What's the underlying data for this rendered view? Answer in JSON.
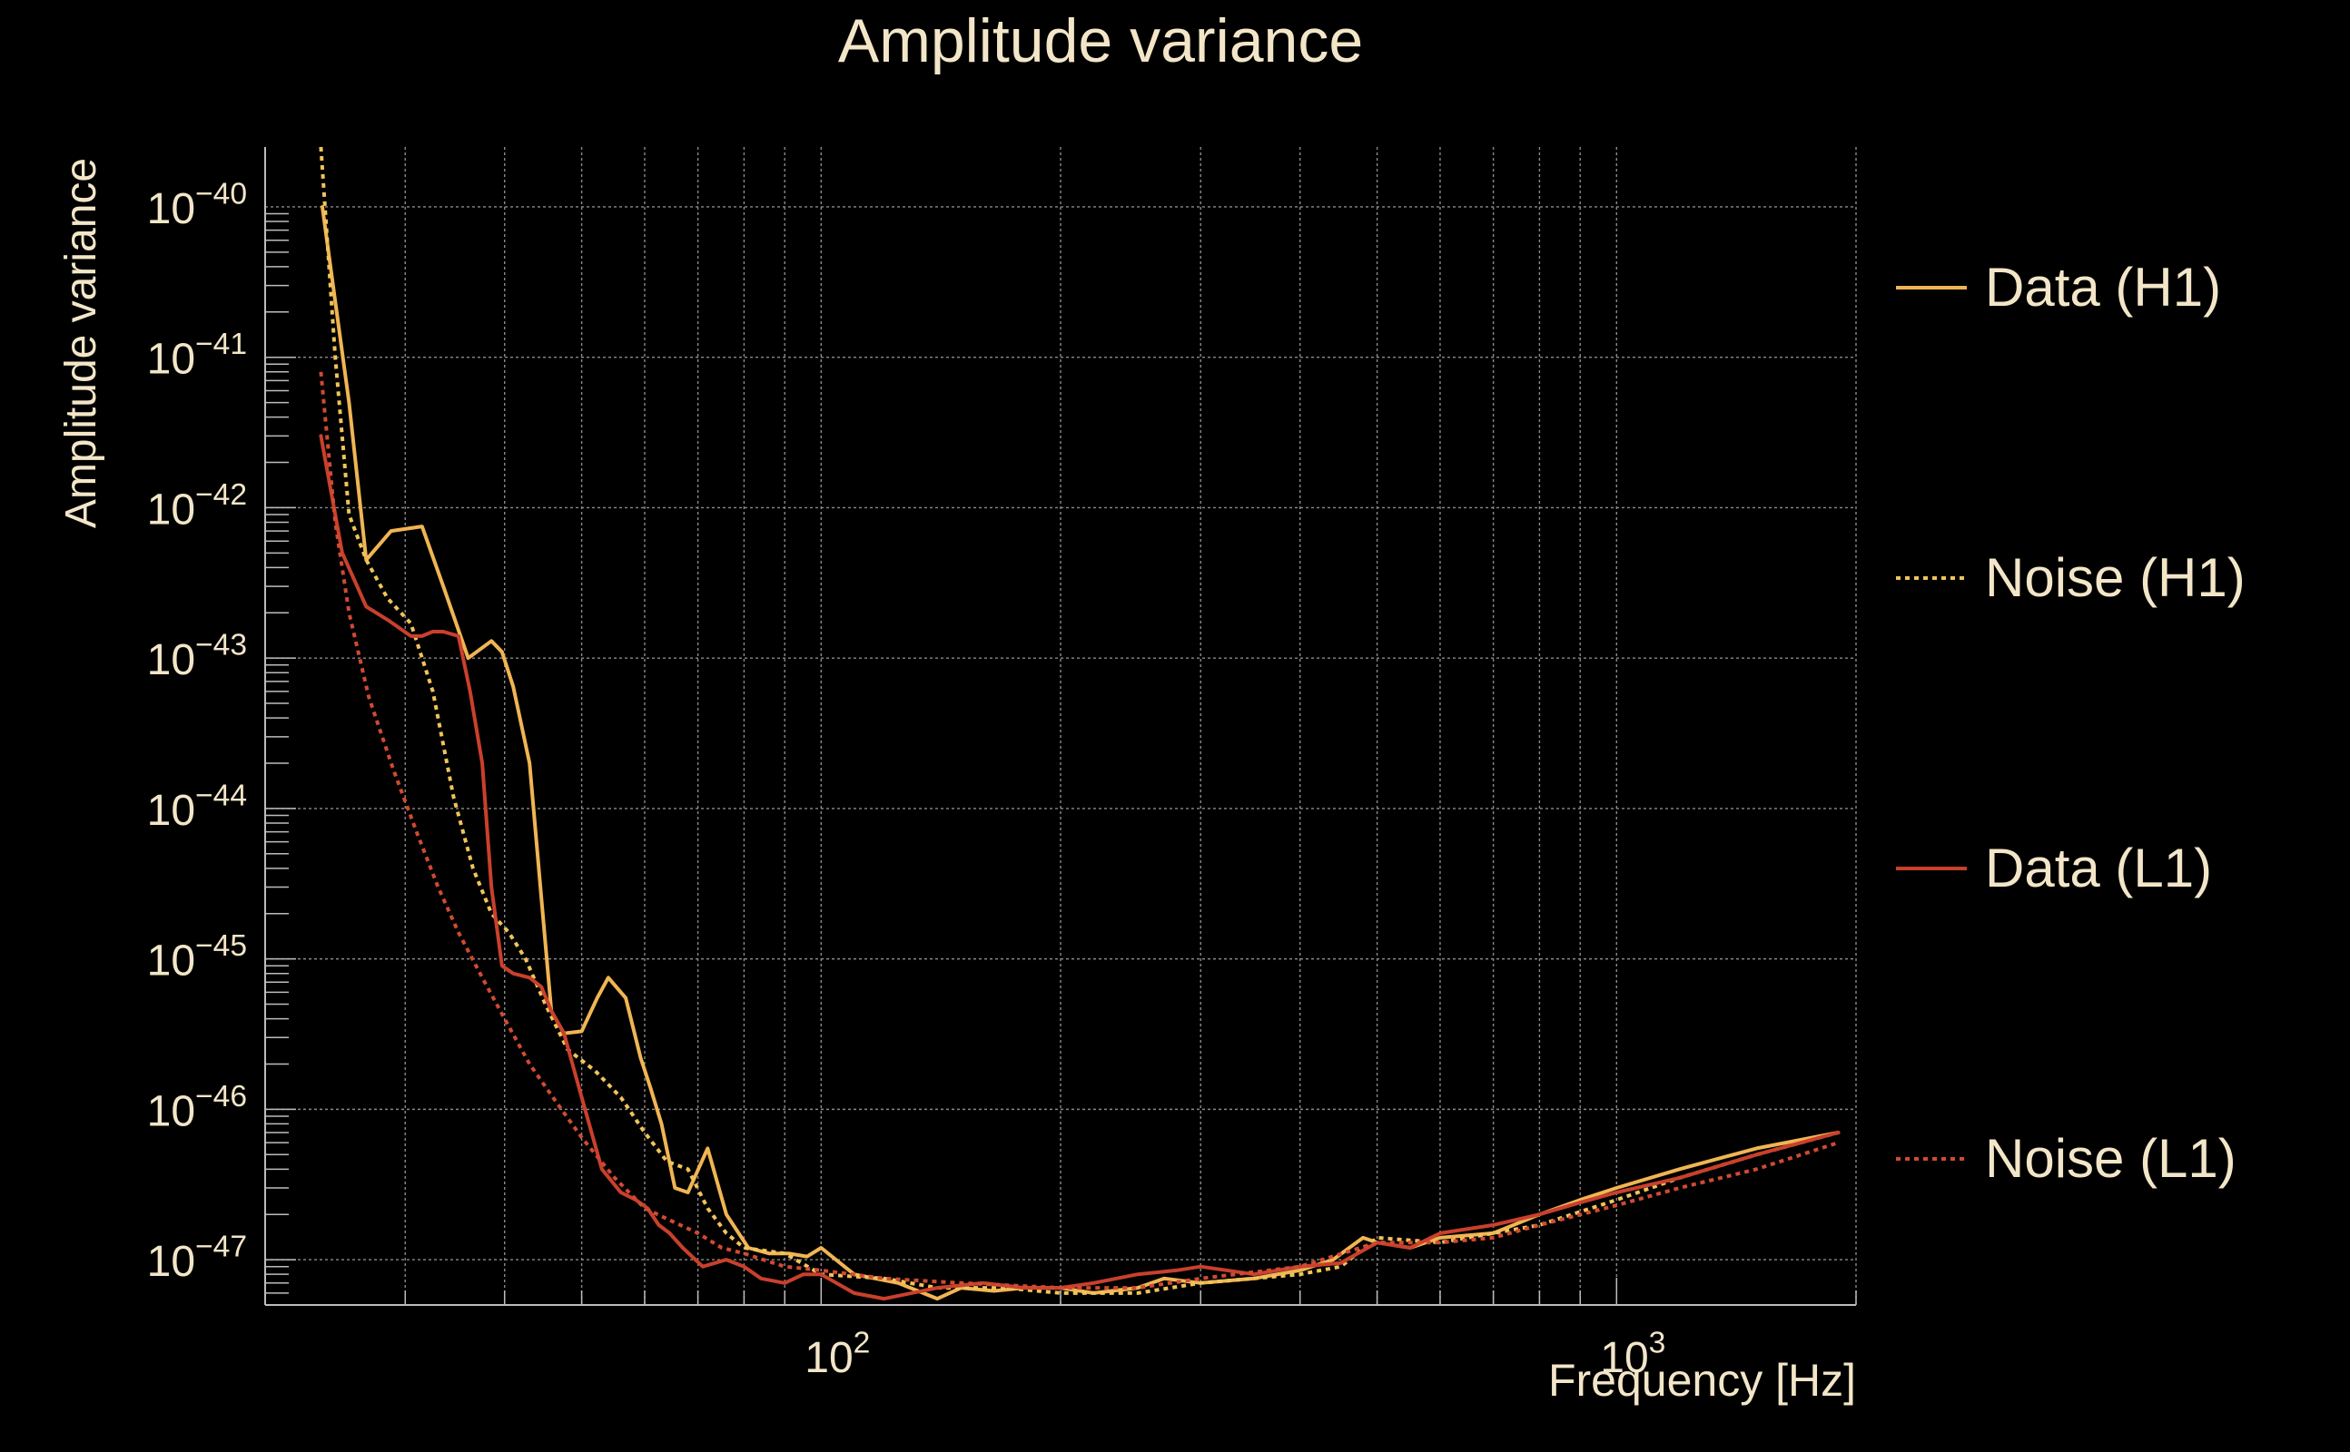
{
  "chart_data": {
    "type": "line",
    "title": "Amplitude variance",
    "xlabel": "Frequency [Hz]",
    "ylabel": "Amplitude variance",
    "xscale": "log",
    "yscale": "log",
    "xlim": [
      20,
      2000
    ],
    "ylim": [
      5e-48,
      2.5e-40
    ],
    "grid": true,
    "legend_position": "right",
    "x_tick_labels": [
      {
        "value": 100,
        "base": "10",
        "exp": "2"
      },
      {
        "value": 1000,
        "base": "10",
        "exp": "3"
      }
    ],
    "y_tick_labels": [
      {
        "value": 1e-40,
        "base": "10",
        "exp": "−40"
      },
      {
        "value": 1e-41,
        "base": "10",
        "exp": "−41"
      },
      {
        "value": 1e-42,
        "base": "10",
        "exp": "−42"
      },
      {
        "value": 1e-43,
        "base": "10",
        "exp": "−43"
      },
      {
        "value": 1e-44,
        "base": "10",
        "exp": "−44"
      },
      {
        "value": 1e-45,
        "base": "10",
        "exp": "−45"
      },
      {
        "value": 1e-46,
        "base": "10",
        "exp": "−46"
      },
      {
        "value": 1e-47,
        "base": "10",
        "exp": "−47"
      }
    ],
    "series": [
      {
        "name": "Data (H1)",
        "color": "#f0b553",
        "dash": "solid",
        "x": [
          23.6,
          25.5,
          26.8,
          28.8,
          31.5,
          33.5,
          36.0,
          38.5,
          39.7,
          41.0,
          43.0,
          44.5,
          45.8,
          47.5,
          50.0,
          52.3,
          54.0,
          56.8,
          59.3,
          61.0,
          63.0,
          65.5,
          68.0,
          72.0,
          76.0,
          81.0,
          86.0,
          91.0,
          96.0,
          100.0,
          110.0,
          125.0,
          140.0,
          150.0,
          165.0,
          180.0,
          200.0,
          220.0,
          250.0,
          270.0,
          300.0,
          350.0,
          400.0,
          440.0,
          480.0,
          500.0,
          550.0,
          600.0,
          700.0,
          800.0,
          900.0,
          1000.0,
          1200.0,
          1500.0,
          1900.0
        ],
        "y": [
          1e-40,
          5e-42,
          4.5e-43,
          7e-43,
          7.5e-43,
          3e-43,
          1e-43,
          1.3e-43,
          1.1e-43,
          6.5e-44,
          2e-44,
          2.5e-45,
          4.5e-46,
          3.2e-46,
          3.3e-46,
          5.5e-46,
          7.5e-46,
          5.5e-46,
          2.2e-46,
          1.4e-46,
          8e-47,
          3e-47,
          2.8e-47,
          5.5e-47,
          2e-47,
          1.2e-47,
          1.1e-47,
          1.1e-47,
          1.05e-47,
          1.2e-47,
          8e-48,
          7e-48,
          5.5e-48,
          6.5e-48,
          6.2e-48,
          6.5e-48,
          6.5e-48,
          6e-48,
          6.5e-48,
          7.5e-48,
          7e-48,
          7.5e-48,
          8.5e-48,
          1e-47,
          1.4e-47,
          1.3e-47,
          1.2e-47,
          1.4e-47,
          1.5e-47,
          2e-47,
          2.5e-47,
          3e-47,
          4e-47,
          5.5e-47,
          7e-47
        ]
      },
      {
        "name": "Noise (H1)",
        "color": "#f0c45a",
        "dash": "dotted",
        "x": [
          23.5,
          24.5,
          25.5,
          26.8,
          28.5,
          30.5,
          32.5,
          34.5,
          36.5,
          38.5,
          40.5,
          42.5,
          45.0,
          48.0,
          52.0,
          56.0,
          60.0,
          64.0,
          68.0,
          72.0,
          76.0,
          80.0,
          90.0,
          100.0,
          120.0,
          140.0,
          170.0,
          200.0,
          250.0,
          300.0,
          350.0,
          400.0,
          450.0,
          500.0,
          600.0,
          700.0,
          800.0,
          1000.0,
          1200.0,
          1500.0,
          1900.0
        ],
        "y": [
          2.5e-40,
          1e-41,
          9e-43,
          4.5e-43,
          2.5e-43,
          1.7e-43,
          6e-44,
          1.2e-44,
          4e-45,
          2e-45,
          1.5e-45,
          1e-45,
          5e-46,
          2.5e-46,
          1.8e-46,
          1.2e-46,
          7e-47,
          4.5e-47,
          4e-47,
          2.2e-47,
          1.5e-47,
          1.2e-47,
          1.1e-47,
          8e-48,
          7.5e-48,
          6.5e-48,
          6.5e-48,
          6e-48,
          6e-48,
          7e-48,
          7.5e-48,
          8e-48,
          9e-48,
          1.4e-47,
          1.3e-47,
          1.5e-47,
          1.7e-47,
          2.5e-47,
          3.5e-47,
          5e-47,
          7e-47
        ]
      },
      {
        "name": "Data (L1)",
        "color": "#c9402c",
        "dash": "solid",
        "x": [
          23.5,
          25.0,
          26.8,
          28.5,
          30.5,
          31.5,
          32.5,
          33.5,
          35.0,
          36.2,
          37.5,
          38.5,
          39.7,
          41.0,
          43.0,
          44.5,
          45.8,
          47.5,
          50.0,
          53.0,
          56.0,
          58.5,
          60.5,
          62.5,
          64.5,
          67.0,
          71.0,
          76.0,
          80.0,
          84.0,
          90.0,
          95.0,
          100.0,
          110.0,
          120.0,
          140.0,
          160.0,
          180.0,
          200.0,
          220.0,
          250.0,
          280.0,
          300.0,
          350.0,
          400.0,
          450.0,
          500.0,
          550.0,
          600.0,
          700.0,
          800.0,
          900.0,
          1000.0,
          1200.0,
          1500.0,
          1900.0
        ],
        "y": [
          3e-42,
          5e-43,
          2.2e-43,
          1.8e-43,
          1.4e-43,
          1.4e-43,
          1.5e-43,
          1.5e-43,
          1.4e-43,
          6e-44,
          2e-44,
          3e-45,
          9e-46,
          8e-46,
          7.5e-46,
          6.5e-46,
          4.5e-46,
          3.2e-46,
          1.2e-46,
          4e-47,
          2.8e-47,
          2.5e-47,
          2.2e-47,
          1.7e-47,
          1.5e-47,
          1.2e-47,
          9e-48,
          1e-47,
          9e-48,
          7.5e-48,
          7e-48,
          8e-48,
          8e-48,
          6e-48,
          5.5e-48,
          6.5e-48,
          7e-48,
          6.5e-48,
          6.5e-48,
          7e-48,
          8e-48,
          8.5e-48,
          9e-48,
          8e-48,
          9e-48,
          9.5e-48,
          1.3e-47,
          1.2e-47,
          1.5e-47,
          1.7e-47,
          2e-47,
          2.4e-47,
          2.8e-47,
          3.5e-47,
          5e-47,
          7e-47
        ]
      },
      {
        "name": "Noise (L1)",
        "color": "#d04a33",
        "dash": "dotted",
        "x": [
          23.5,
          24.5,
          25.5,
          27.0,
          29.0,
          31.0,
          33.0,
          35.0,
          37.5,
          40.0,
          43.0,
          46.0,
          50.0,
          55.0,
          60.0,
          65.0,
          70.0,
          75.0,
          80.0,
          90.0,
          100.0,
          120.0,
          150.0,
          200.0,
          250.0,
          300.0,
          400.0,
          500.0,
          600.0,
          700.0,
          800.0,
          1000.0,
          1200.0,
          1500.0,
          1900.0
        ],
        "y": [
          8e-42,
          8e-43,
          2e-43,
          5.5e-44,
          1.8e-44,
          7e-45,
          3e-45,
          1.5e-45,
          7.5e-46,
          4e-46,
          2e-46,
          1.2e-46,
          6.5e-47,
          3.5e-47,
          2.2e-47,
          1.8e-47,
          1.5e-47,
          1.2e-47,
          1.1e-47,
          9e-48,
          8.5e-48,
          7.5e-48,
          7e-48,
          6.5e-48,
          6.5e-48,
          7.5e-48,
          9e-48,
          1.3e-47,
          1.3e-47,
          1.4e-47,
          1.7e-47,
          2.3e-47,
          3e-47,
          4e-47,
          6e-47
        ]
      }
    ]
  }
}
